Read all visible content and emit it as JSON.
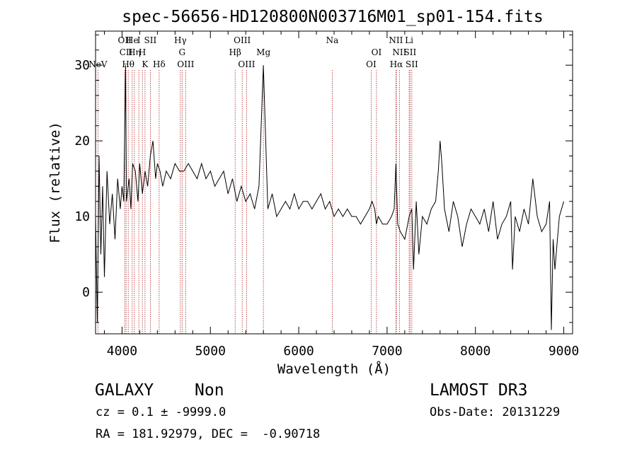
{
  "chart_data": {
    "type": "line",
    "title": "spec-56656-HD120800N003716M01_sp01-154.fits",
    "xlabel": "Wavelength (Å)",
    "ylabel": "Flux (relative)",
    "xlim": [
      3700,
      9100
    ],
    "ylim": [
      -5.5,
      34.5
    ],
    "x_ticks": [
      4000,
      5000,
      6000,
      7000,
      8000,
      9000
    ],
    "x_tick_labels": [
      "4000",
      "5000",
      "6000",
      "7000",
      "8000",
      "9000"
    ],
    "y_ticks": [
      0,
      10,
      20,
      30
    ],
    "y_tick_labels": [
      "0",
      "10",
      "20",
      "30"
    ],
    "grid": false,
    "colors": {
      "spectrum": "#000000",
      "line_markers": "#b22222",
      "axes": "#000000"
    },
    "series": [
      {
        "x": [
          3700,
          3720,
          3740,
          3760,
          3780,
          3800,
          3830,
          3860,
          3890,
          3920,
          3950,
          3980,
          4000,
          4020,
          4040,
          4050,
          4060,
          4080,
          4100,
          4120,
          4150,
          4180,
          4200,
          4230,
          4260,
          4290,
          4320,
          4350,
          4380,
          4400,
          4430,
          4460,
          4500,
          4550,
          4600,
          4650,
          4700,
          4750,
          4800,
          4850,
          4900,
          4950,
          5000,
          5050,
          5100,
          5150,
          5200,
          5250,
          5300,
          5350,
          5400,
          5450,
          5500,
          5550,
          5600,
          5650,
          5700,
          5750,
          5800,
          5850,
          5900,
          5950,
          6000,
          6050,
          6100,
          6150,
          6200,
          6250,
          6300,
          6350,
          6400,
          6450,
          6500,
          6550,
          6600,
          6650,
          6700,
          6750,
          6800,
          6830,
          6860,
          6880,
          6900,
          6950,
          7000,
          7050,
          7080,
          7100,
          7120,
          7150,
          7200,
          7250,
          7280,
          7300,
          7330,
          7360,
          7400,
          7450,
          7500,
          7550,
          7580,
          7600,
          7620,
          7650,
          7700,
          7750,
          7800,
          7850,
          7900,
          7950,
          8000,
          8050,
          8100,
          8150,
          8200,
          8250,
          8300,
          8350,
          8400,
          8420,
          8450,
          8500,
          8550,
          8600,
          8650,
          8700,
          8750,
          8800,
          8840,
          8860,
          8880,
          8900,
          8950,
          9000
        ],
        "y": [
          10,
          -4,
          18,
          5,
          14,
          2,
          16,
          9,
          13,
          7,
          15,
          11,
          14,
          12,
          30,
          12,
          13,
          15,
          11,
          17,
          16,
          12,
          17,
          13,
          16,
          14,
          18,
          20,
          15,
          17,
          16,
          14,
          16,
          15,
          17,
          16,
          16,
          17,
          16,
          15,
          17,
          15,
          16,
          14,
          15,
          16,
          13,
          15,
          12,
          14,
          12,
          13,
          11,
          14,
          30,
          11,
          13,
          10,
          11,
          12,
          11,
          13,
          11,
          12,
          12,
          11,
          12,
          13,
          11,
          12,
          10,
          11,
          10,
          11,
          10,
          10,
          9,
          10,
          11,
          12,
          11,
          9,
          10,
          9,
          9,
          10,
          11,
          17,
          9,
          8,
          7,
          10,
          11,
          3,
          12,
          5,
          10,
          9,
          11,
          12,
          16,
          20,
          17,
          11,
          8,
          12,
          10,
          6,
          9,
          11,
          10,
          9,
          11,
          8,
          12,
          7,
          9,
          10,
          12,
          3,
          10,
          8,
          11,
          9,
          15,
          10,
          8,
          9,
          12,
          -5,
          7,
          3,
          10,
          12
        ]
      }
    ],
    "line_markers": [
      {
        "label": "NeV",
        "x": 3727,
        "row": 3
      },
      {
        "label": "OII",
        "x": 4030,
        "row": 1
      },
      {
        "label": "CII",
        "x": 4045,
        "row": 2
      },
      {
        "label": "Hθ",
        "x": 4070,
        "row": 3
      },
      {
        "label": "He",
        "x": 4115,
        "row": 1
      },
      {
        "label": "Hη",
        "x": 4140,
        "row": 2
      },
      {
        "label": "I",
        "x": 4190,
        "row": 1
      },
      {
        "label": "H",
        "x": 4230,
        "row": 2
      },
      {
        "label": "K",
        "x": 4260,
        "row": 3
      },
      {
        "label": "SII",
        "x": 4320,
        "row": 1
      },
      {
        "label": "Hδ",
        "x": 4420,
        "row": 3
      },
      {
        "label": "Hγ",
        "x": 4660,
        "row": 1
      },
      {
        "label": "G",
        "x": 4680,
        "row": 2
      },
      {
        "label": "OIII",
        "x": 4720,
        "row": 3
      },
      {
        "label": "OIII",
        "x": 5360,
        "row": 1
      },
      {
        "label": "Hβ",
        "x": 5280,
        "row": 2
      },
      {
        "label": "OIII",
        "x": 5410,
        "row": 3
      },
      {
        "label": "Mg",
        "x": 5600,
        "row": 2
      },
      {
        "label": "Na",
        "x": 6380,
        "row": 1
      },
      {
        "label": "OI",
        "x": 6880,
        "row": 2
      },
      {
        "label": "OI",
        "x": 6820,
        "row": 3
      },
      {
        "label": "NII",
        "x": 7100,
        "row": 1
      },
      {
        "label": "Li",
        "x": 7250,
        "row": 1
      },
      {
        "label": "NII",
        "x": 7140,
        "row": 2
      },
      {
        "label": "SII",
        "x": 7260,
        "row": 2
      },
      {
        "label": "Hα",
        "x": 7105,
        "row": 3
      },
      {
        "label": "SII",
        "x": 7280,
        "row": 3
      }
    ]
  },
  "info": {
    "class": "GALAXY",
    "subclass": "Non",
    "survey": "LAMOST DR3",
    "cz_line": "cz = 0.1 ± -9999.0",
    "obs_date_line": "Obs-Date: 20131229",
    "radec_line": "RA = 181.92979, DEC =  -0.90718"
  }
}
